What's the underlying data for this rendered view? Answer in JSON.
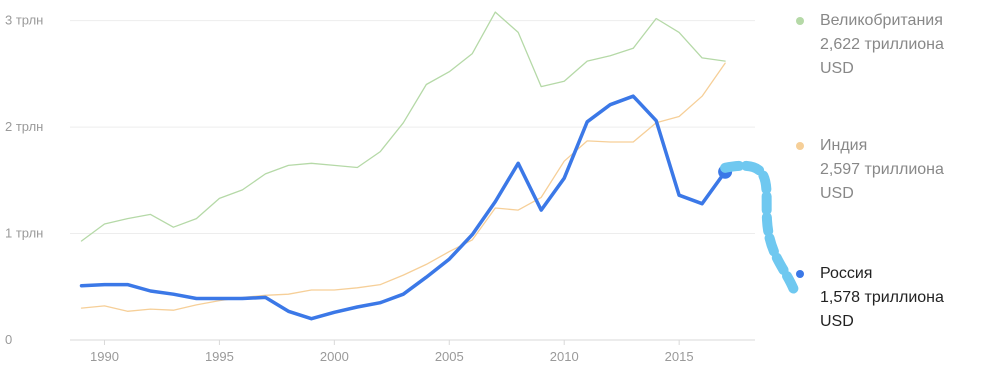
{
  "chart_data": {
    "type": "line",
    "x": [
      1989,
      1990,
      1991,
      1992,
      1993,
      1994,
      1995,
      1996,
      1997,
      1998,
      1999,
      2000,
      2001,
      2002,
      2003,
      2004,
      2005,
      2006,
      2007,
      2008,
      2009,
      2010,
      2011,
      2012,
      2013,
      2014,
      2015,
      2016,
      2017
    ],
    "xlim": [
      1988.5,
      2018.3
    ],
    "ylim": [
      0,
      3.1
    ],
    "x_ticks": [
      {
        "value": 1990,
        "label": "1990"
      },
      {
        "value": 1995,
        "label": "1995"
      },
      {
        "value": 2000,
        "label": "2000"
      },
      {
        "value": 2005,
        "label": "2005"
      },
      {
        "value": 2010,
        "label": "2010"
      },
      {
        "value": 2015,
        "label": "2015"
      }
    ],
    "y_ticks": [
      {
        "value": 0,
        "label": "0"
      },
      {
        "value": 1,
        "label": "1 трлн"
      },
      {
        "value": 2,
        "label": "2 трлн"
      },
      {
        "value": 3,
        "label": "3 трлн"
      }
    ],
    "grid": true,
    "legend_position": "right",
    "series": [
      {
        "name": "Великобритания",
        "color": "#b5d9a7",
        "values": [
          0.93,
          1.09,
          1.14,
          1.18,
          1.06,
          1.14,
          1.33,
          1.41,
          1.56,
          1.64,
          1.66,
          1.64,
          1.62,
          1.77,
          2.04,
          2.4,
          2.52,
          2.69,
          3.08,
          2.89,
          2.38,
          2.43,
          2.62,
          2.67,
          2.74,
          3.02,
          2.89,
          2.65,
          2.62
        ]
      },
      {
        "name": "Индия",
        "color": "#f6cf98",
        "values": [
          0.3,
          0.32,
          0.27,
          0.29,
          0.28,
          0.33,
          0.37,
          0.4,
          0.42,
          0.43,
          0.47,
          0.47,
          0.49,
          0.52,
          0.61,
          0.71,
          0.83,
          0.94,
          1.24,
          1.22,
          1.34,
          1.68,
          1.87,
          1.86,
          1.86,
          2.04,
          2.1,
          2.29,
          2.6
        ]
      },
      {
        "name": "Россия",
        "color": "#3b78e7",
        "values": [
          0.51,
          0.52,
          0.52,
          0.46,
          0.43,
          0.39,
          0.39,
          0.39,
          0.4,
          0.27,
          0.2,
          0.26,
          0.31,
          0.35,
          0.43,
          0.59,
          0.76,
          0.99,
          1.3,
          1.66,
          1.22,
          1.52,
          2.05,
          2.21,
          2.29,
          2.06,
          1.36,
          1.28,
          1.58
        ]
      }
    ]
  },
  "legend": [
    {
      "name": "Великобритания",
      "value": "2,622 триллиона",
      "unit": "USD",
      "color": "#b5d9a7"
    },
    {
      "name": "Индия",
      "value": "2,597 триллиона",
      "unit": "USD",
      "color": "#f6cf98"
    },
    {
      "name": "Россия",
      "value": "1,578 триллиона",
      "unit": "USD",
      "color": "#3b78e7"
    }
  ],
  "connector_color": "#6fc8f0"
}
